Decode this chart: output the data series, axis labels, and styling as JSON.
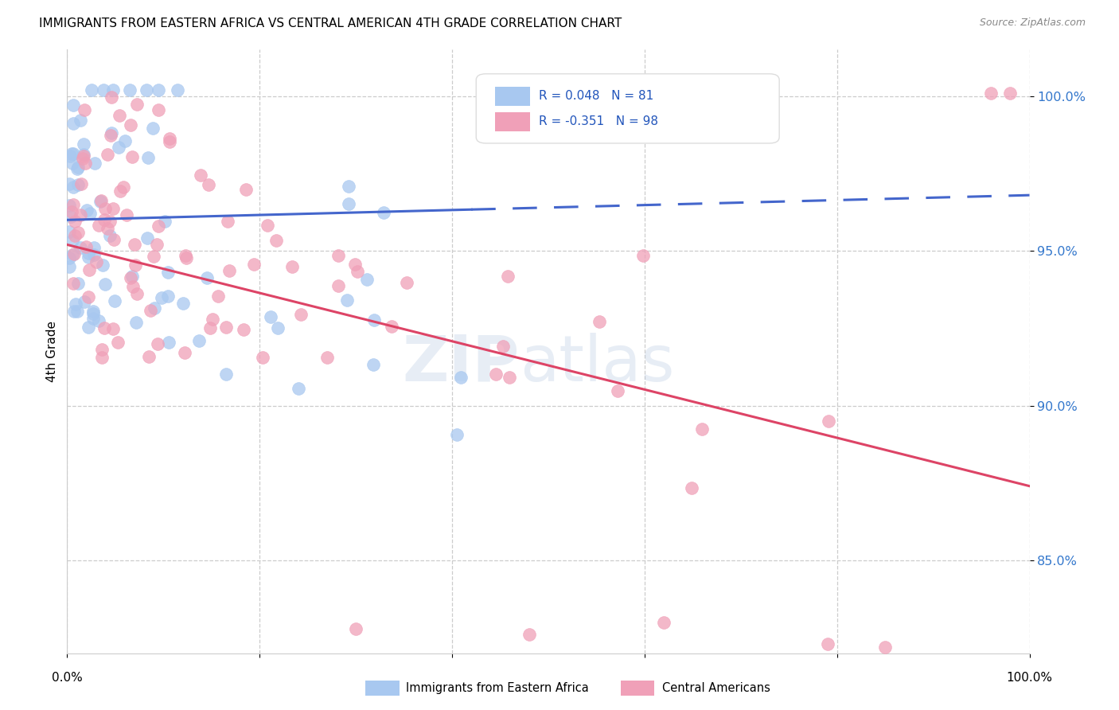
{
  "title": "IMMIGRANTS FROM EASTERN AFRICA VS CENTRAL AMERICAN 4TH GRADE CORRELATION CHART",
  "source": "Source: ZipAtlas.com",
  "ylabel": "4th Grade",
  "xlim": [
    0.0,
    1.0
  ],
  "ylim": [
    0.82,
    1.015
  ],
  "blue_color": "#a8c8f0",
  "pink_color": "#f0a0b8",
  "trend_blue": "#4466cc",
  "trend_pink": "#dd4466",
  "blue_R": 0.048,
  "blue_N": 81,
  "pink_R": -0.351,
  "pink_N": 98,
  "ytick_vals": [
    0.85,
    0.9,
    0.95,
    1.0
  ],
  "ytick_labels": [
    "85.0%",
    "90.0%",
    "95.0%",
    "100.0%"
  ],
  "legend_label1": "Immigrants from Eastern Africa",
  "legend_label2": "Central Americans"
}
